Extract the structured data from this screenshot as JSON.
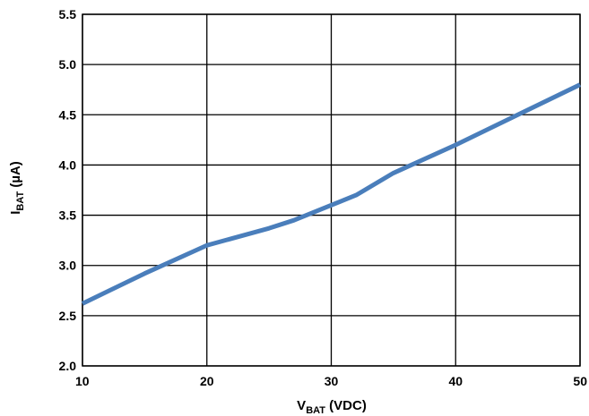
{
  "chart_data": {
    "type": "line",
    "title": "",
    "xlabel": {
      "main": "V",
      "sub": "BAT",
      "rest": " (VDC)"
    },
    "ylabel": {
      "main": "I",
      "sub": "BAT",
      "rest": " (µA)"
    },
    "xlim": [
      10,
      50
    ],
    "ylim": [
      2.0,
      5.5
    ],
    "x_ticks": [
      10,
      20,
      30,
      40,
      50
    ],
    "y_ticks": [
      2.0,
      2.5,
      3.0,
      3.5,
      4.0,
      4.5,
      5.0,
      5.5
    ],
    "x_tick_labels": [
      "10",
      "20",
      "30",
      "40",
      "50"
    ],
    "y_tick_labels": [
      "2.0",
      "2.5",
      "3.0",
      "3.5",
      "4.0",
      "4.5",
      "5.0",
      "5.5"
    ],
    "grid": true,
    "legend": "none",
    "series": [
      {
        "x": [
          10,
          15,
          20,
          25,
          27,
          30,
          32,
          35,
          40,
          45,
          50
        ],
        "y": [
          2.62,
          2.92,
          3.2,
          3.37,
          3.45,
          3.6,
          3.7,
          3.92,
          4.2,
          4.5,
          4.8
        ],
        "color": "#4a7ebb"
      }
    ]
  }
}
